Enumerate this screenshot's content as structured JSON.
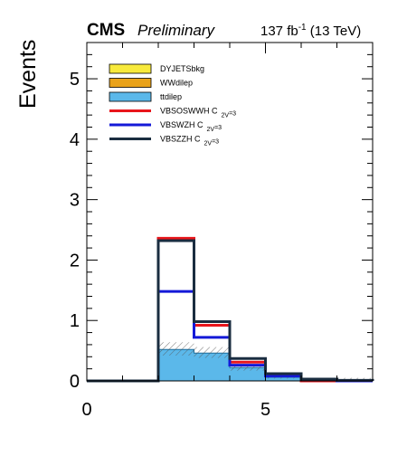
{
  "header": {
    "experiment": "CMS",
    "status": "Preliminary",
    "lumi_value": "137 fb",
    "lumi_exp": "-1",
    "lumi_energy": " (13 TeV)"
  },
  "chart_data": {
    "type": "bar",
    "histtype": "stacked-step",
    "ylabel": "Events",
    "xlabel": "",
    "xlim": [
      0,
      8
    ],
    "ylim": [
      0,
      5.6
    ],
    "bin_edges": [
      0,
      1,
      2,
      3,
      4,
      5,
      6,
      7,
      8
    ],
    "x_ticks": [
      0,
      5
    ],
    "y_ticks": [
      0,
      1,
      2,
      3,
      4,
      5
    ],
    "stack": [
      {
        "name": "DYJETSbkg",
        "color": "#f8ea3c",
        "values": [
          0,
          0,
          0,
          0,
          0,
          0,
          0,
          0
        ]
      },
      {
        "name": "WWdilep",
        "color": "#e9a21a",
        "values": [
          0,
          0,
          0,
          0,
          0,
          0,
          0,
          0
        ]
      },
      {
        "name": "ttdilep",
        "color": "#5bb8ea",
        "values": [
          0,
          0,
          0.52,
          0.46,
          0.22,
          0.06,
          0.02,
          0.01
        ]
      }
    ],
    "uncertainty": {
      "low": [
        0,
        0,
        0.42,
        0.38,
        0.17,
        0.04,
        0.01,
        0.0
      ],
      "high": [
        0,
        0,
        0.64,
        0.56,
        0.28,
        0.09,
        0.04,
        0.05
      ]
    },
    "signals": [
      {
        "name": "VBSOSWWH C",
        "sub": "2V",
        "suffix": "=3",
        "color": "#e8151b",
        "values": [
          0,
          0,
          2.36,
          0.92,
          0.31,
          0.1,
          0,
          0
        ]
      },
      {
        "name": "VBSWZH C",
        "sub": "2V",
        "suffix": "=3",
        "color": "#1419d8",
        "values": [
          0,
          0,
          1.48,
          0.72,
          0.26,
          0.08,
          0.02,
          0
        ]
      },
      {
        "name": "VBSZZH C",
        "sub": "2V",
        "suffix": "=3",
        "color": "#1a2d40",
        "values": [
          0,
          0,
          2.32,
          0.98,
          0.37,
          0.12,
          0.03,
          0.01
        ]
      }
    ],
    "legend_position": "top-left"
  }
}
